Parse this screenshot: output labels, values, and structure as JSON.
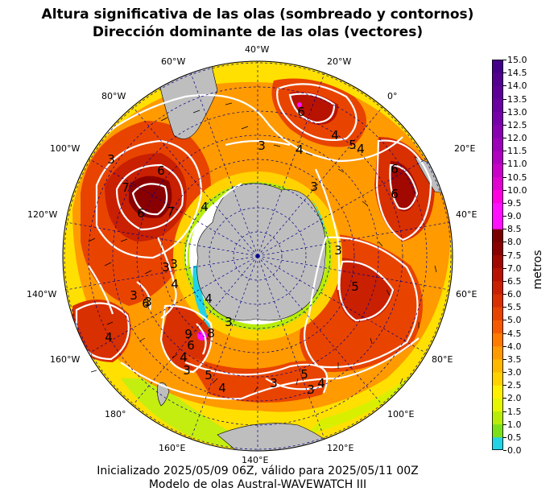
{
  "title_line1": "Altura significativa de las olas (sombreado y contornos)",
  "title_line2": "Dirección dominante de las olas (vectores)",
  "footer_line1": "Inicializado 2025/05/09 06Z, válido para 2025/05/11 00Z",
  "footer_line2": "Modelo de olas Austral-WAVEWATCH III",
  "longitude_labels": {
    "w40": "40°W",
    "w20": "20°W",
    "e0": "0°",
    "w60": "60°W",
    "w80": "80°W",
    "e20": "20°E",
    "w100": "100°W",
    "e40": "40°E",
    "w120": "120°W",
    "w140": "140°W",
    "e60": "60°E",
    "w160": "160°W",
    "e80": "80°E",
    "w180": "180°",
    "e100": "100°E",
    "e160": "160°E",
    "e120": "120°E",
    "e140": "140°E"
  },
  "contour_labels": [
    {
      "id": "c1",
      "text": "3"
    },
    {
      "id": "c2",
      "text": "6"
    },
    {
      "id": "c3",
      "text": "7"
    },
    {
      "id": "c4",
      "text": "6"
    },
    {
      "id": "c5",
      "text": "7"
    },
    {
      "id": "c6",
      "text": "4"
    },
    {
      "id": "c7",
      "text": "3"
    },
    {
      "id": "c8",
      "text": "4"
    },
    {
      "id": "c9",
      "text": "6"
    },
    {
      "id": "c10",
      "text": "4"
    },
    {
      "id": "c11",
      "text": "5"
    },
    {
      "id": "c12",
      "text": "3"
    },
    {
      "id": "c13",
      "text": "4"
    },
    {
      "id": "c14",
      "text": "6"
    },
    {
      "id": "c15",
      "text": "6"
    },
    {
      "id": "c16",
      "text": "3"
    },
    {
      "id": "c17",
      "text": "3"
    },
    {
      "id": "c18",
      "text": "5"
    },
    {
      "id": "c19",
      "text": "3"
    },
    {
      "id": "c20",
      "text": "4"
    },
    {
      "id": "c21",
      "text": "3"
    },
    {
      "id": "c22",
      "text": "4"
    },
    {
      "id": "c23",
      "text": "3"
    },
    {
      "id": "c24",
      "text": "6"
    },
    {
      "id": "c25",
      "text": "4"
    },
    {
      "id": "c26",
      "text": "8"
    },
    {
      "id": "c27",
      "text": "9"
    },
    {
      "id": "c28",
      "text": "6"
    },
    {
      "id": "c29",
      "text": "4"
    },
    {
      "id": "c30",
      "text": "3"
    },
    {
      "id": "c31",
      "text": "5"
    },
    {
      "id": "c32",
      "text": "4"
    },
    {
      "id": "c33",
      "text": "3"
    },
    {
      "id": "c34",
      "text": "5"
    },
    {
      "id": "c35",
      "text": "3"
    },
    {
      "id": "c36",
      "text": "4"
    },
    {
      "id": "c37",
      "text": "3"
    }
  ],
  "colorbar": {
    "label": "metros",
    "ticks": [
      "0.0",
      "0.5",
      "1.0",
      "1.5",
      "2.0",
      "2.5",
      "3.0",
      "3.5",
      "4.0",
      "4.5",
      "5.0",
      "5.5",
      "6.0",
      "6.5",
      "7.0",
      "7.5",
      "8.0",
      "8.5",
      "9.0",
      "9.5",
      "10.0",
      "10.5",
      "11.0",
      "11.5",
      "12.0",
      "12.5",
      "13.0",
      "13.5",
      "14.0",
      "14.5",
      "15.0"
    ],
    "colors": [
      "#22d3e6",
      "#7be01a",
      "#b8ec08",
      "#e6f500",
      "#fff000",
      "#ffd200",
      "#ffb800",
      "#ff9a00",
      "#ff7a00",
      "#f55a00",
      "#e84400",
      "#d83000",
      "#c82000",
      "#b81200",
      "#a00800",
      "#8a0000",
      "#7a0000",
      "#ff10ff",
      "#ff10ff",
      "#ff00e0",
      "#e000d0",
      "#c800c8",
      "#b000c0",
      "#9c00b8",
      "#8800b0",
      "#7800a8",
      "#6a00a0",
      "#5e0098",
      "#520090",
      "#440088"
    ]
  },
  "colors": {
    "land": "#bebebe",
    "ice_sheet_fill": "#ffffff",
    "contour": "#ffffff",
    "grid": "#00008b"
  }
}
